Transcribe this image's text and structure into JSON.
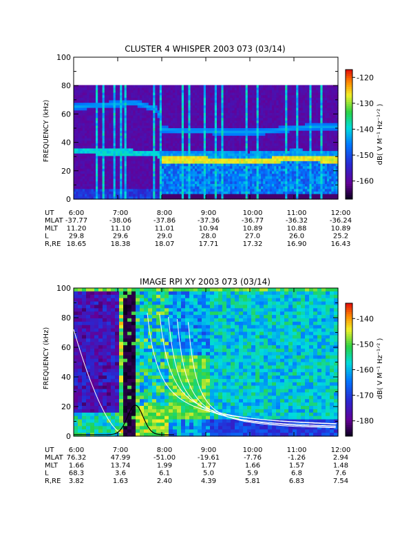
{
  "chart_data": [
    {
      "type": "heatmap",
      "title": "CLUSTER 4 WHISPER 2003 073 (03/14)",
      "ylabel": "FREQUENCY (kHz)",
      "ylim": [
        0,
        100
      ],
      "y_ticks": [
        "0",
        "20",
        "40",
        "60",
        "80",
        "100"
      ],
      "x_ticks": [
        "6:00",
        "7:00",
        "8:00",
        "9:00",
        "10:00",
        "11:00",
        "12:00"
      ],
      "colorbar": {
        "label": "dB( V M⁻¹ Hz⁻¹ᐟ² )",
        "ticks": [
          "-120",
          "-130",
          "-140",
          "-150",
          "-160"
        ],
        "range": [
          -167,
          -117
        ]
      },
      "data_ceiling_khz": 80,
      "features": {
        "upper_band": {
          "x": [
            6.0,
            6.5,
            7.0,
            7.4,
            7.6,
            7.9,
            8.0,
            8.5,
            9.0,
            9.5,
            10.0,
            10.5,
            11.0,
            11.5
          ],
          "y": [
            65,
            66,
            67,
            68,
            66,
            63,
            49,
            48,
            48,
            47,
            47,
            48,
            50,
            51
          ]
        },
        "lower_band": {
          "x": [
            6.0,
            7.0,
            7.9,
            8.0,
            9.0,
            10.0,
            11.0,
            12.0
          ],
          "y": [
            34,
            33,
            32,
            28,
            28,
            27,
            29,
            28
          ]
        }
      },
      "ephemeris": {
        "labels": [
          "UT",
          "MLAT",
          "MLT",
          "L",
          "R,RE"
        ],
        "columns": [
          [
            "6:00",
            "-37.77",
            "11.20",
            "29.8",
            "18.65"
          ],
          [
            "7:00",
            "-38.06",
            "11.10",
            "29.6",
            "18.38"
          ],
          [
            "8:00",
            "-37.86",
            "11.01",
            "29.0",
            "18.07"
          ],
          [
            "9:00",
            "-37.36",
            "10.94",
            "28.0",
            "17.71"
          ],
          [
            "10:00",
            "-36.77",
            "10.89",
            "27.0",
            "17.32"
          ],
          [
            "11:00",
            "-36.32",
            "10.88",
            "26.0",
            "16.90"
          ],
          [
            "12:00",
            "-36.24",
            "10.89",
            "25.2",
            "16.43"
          ]
        ]
      }
    },
    {
      "type": "heatmap",
      "title": "IMAGE RPI XY 2003 073 (03/14)",
      "ylabel": "FREQUENCY (kHz)",
      "ylim": [
        0,
        100
      ],
      "y_ticks": [
        "0",
        "20",
        "40",
        "60",
        "80",
        "100"
      ],
      "x_ticks": [
        "6:00",
        "7:00",
        "8:00",
        "9:00",
        "10:00",
        "11:00",
        "12:00"
      ],
      "colorbar": {
        "label": "dB( V M⁻¹ Hz⁻¹ᐟ² )",
        "ticks": [
          "-140",
          "-150",
          "-160",
          "-170",
          "-180"
        ],
        "range": [
          -186,
          -134
        ]
      },
      "ephemeris": {
        "labels": [
          "UT",
          "MLAT",
          "MLT",
          "L",
          "R,RE"
        ],
        "columns": [
          [
            "6:00",
            "76.32",
            "1.66",
            "68.3",
            "3.82"
          ],
          [
            "7:00",
            "47.99",
            "13.74",
            "3.6",
            "1.63"
          ],
          [
            "8:00",
            "-51.00",
            "1.99",
            "6.1",
            "2.40"
          ],
          [
            "9:00",
            "-19.61",
            "1.77",
            "5.0",
            "4.39"
          ],
          [
            "10:00",
            "-7.76",
            "1.66",
            "5.9",
            "5.81"
          ],
          [
            "11:00",
            "-1.26",
            "1.57",
            "6.8",
            "6.83"
          ],
          [
            "12:00",
            "2.94",
            "1.48",
            "7.6",
            "7.54"
          ]
        ]
      }
    }
  ]
}
